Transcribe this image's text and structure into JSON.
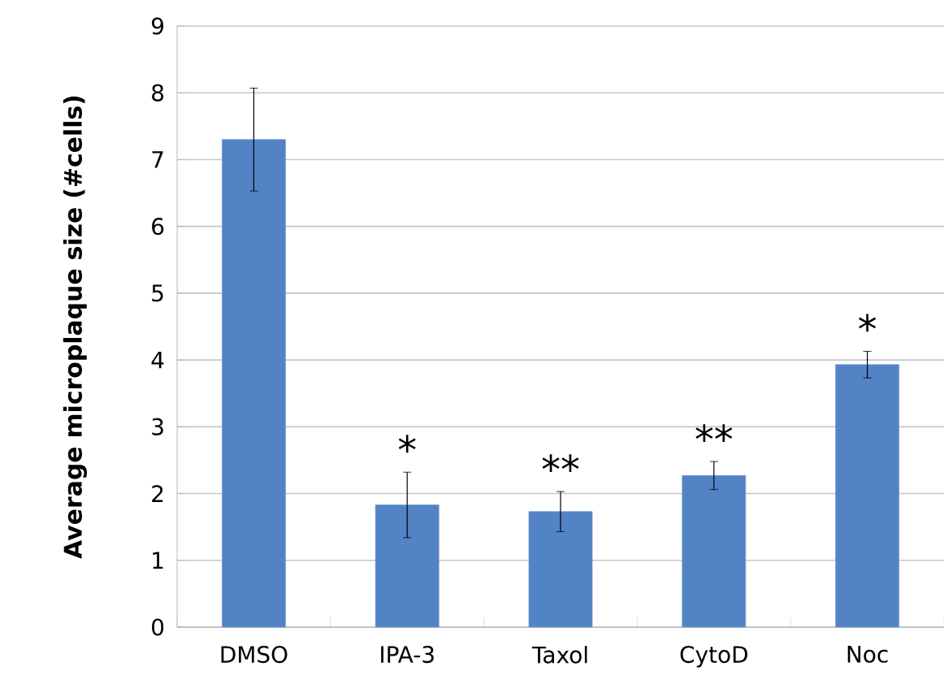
{
  "chart_data": {
    "type": "bar",
    "ylabel": "Average microplaque size (#cells)",
    "categories": [
      "DMSO",
      "IPA-3",
      "Taxol",
      "CytoD",
      "Noc"
    ],
    "values": [
      7.3,
      1.83,
      1.73,
      2.27,
      3.93
    ],
    "errors": [
      0.77,
      0.49,
      0.3,
      0.21,
      0.2
    ],
    "color": "#5283c5",
    "ylim": [
      0,
      9
    ],
    "yticks": [
      0,
      1,
      2,
      3,
      4,
      5,
      6,
      7,
      8,
      9
    ],
    "grid": "y",
    "value_labels": [
      null,
      "*",
      "**",
      "**",
      "*"
    ]
  }
}
